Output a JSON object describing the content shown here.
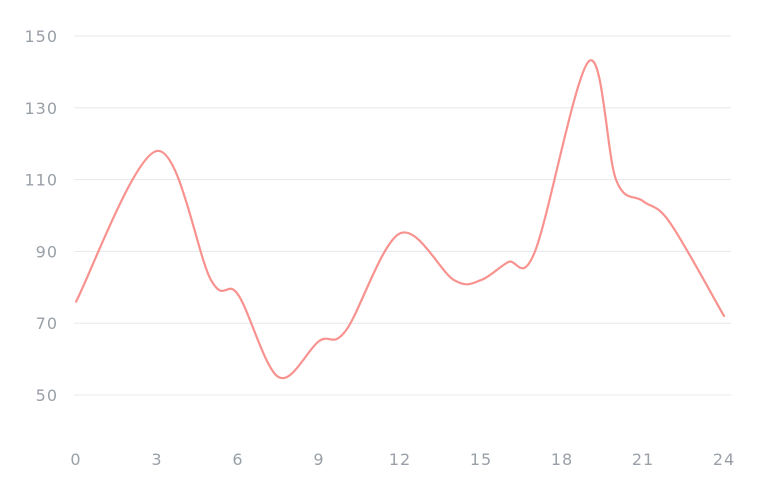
{
  "chart_data": {
    "type": "line",
    "title": "",
    "xlabel": "",
    "ylabel": "",
    "x": [
      0,
      3,
      5,
      6,
      7.5,
      9,
      10,
      12,
      14,
      15,
      16,
      17,
      19,
      20,
      21,
      22,
      24
    ],
    "x_ticks": [
      "0",
      "3",
      "6",
      "9",
      "12",
      "15",
      "18",
      "21",
      "24"
    ],
    "y_ticks": [
      "50",
      "70",
      "90",
      "110",
      "130",
      "150"
    ],
    "xlim": [
      0,
      24
    ],
    "ylim": [
      40,
      150
    ],
    "grid": true,
    "legend": "none",
    "series": [
      {
        "color": "#f8928f",
        "values": [
          76,
          118,
          82,
          78,
          55,
          65,
          68,
          95,
          82,
          82,
          87,
          90,
          143,
          110,
          104,
          98,
          72
        ]
      }
    ]
  }
}
